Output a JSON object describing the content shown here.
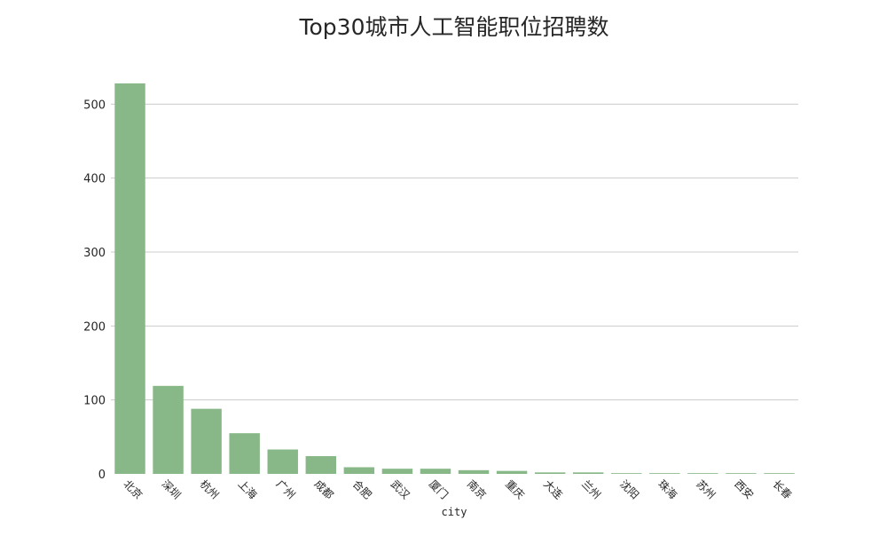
{
  "chart_data": {
    "type": "bar",
    "title": "Top30城市人工智能职位招聘数",
    "xlabel": "city",
    "ylabel": "",
    "categories": [
      "北京",
      "深圳",
      "杭州",
      "上海",
      "广州",
      "成都",
      "合肥",
      "武汉",
      "厦门",
      "南京",
      "重庆",
      "大连",
      "兰州",
      "沈阳",
      "珠海",
      "苏州",
      "西安",
      "长春"
    ],
    "values": [
      528,
      119,
      88,
      55,
      33,
      24,
      9,
      7,
      7,
      5,
      4,
      2,
      2,
      1,
      1,
      1,
      1,
      1
    ],
    "ylim": [
      0,
      540
    ],
    "yticks": [
      0,
      100,
      200,
      300,
      400,
      500
    ],
    "grid": true,
    "bar_color": "#88b888",
    "legend": "none"
  }
}
